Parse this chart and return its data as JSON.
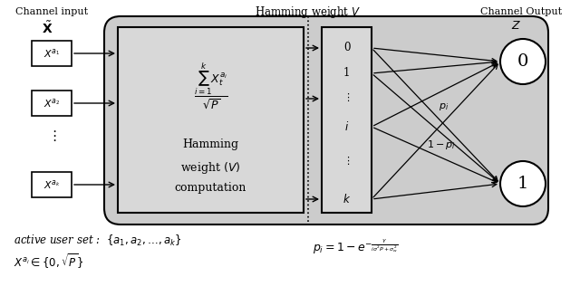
{
  "fig_width": 6.4,
  "fig_height": 3.27,
  "bg_color": "#ffffff",
  "gray_box_color": "#cccccc",
  "inner_box_color": "#e8e8e8",
  "title_channel_input": "Channel input",
  "title_hamming": "Hamming weight $V$",
  "title_channel_output": "Channel Output",
  "label_xtilde": "$\\tilde{\\mathbf{X}}$",
  "label_Z": "$Z$",
  "labels_input": [
    "$X^{a_1}$",
    "$X^{a_2}$",
    "$X^{a_k}$"
  ],
  "label_pi": "$p_i$",
  "label_1mpi": "$1-p_i$",
  "formula_sum": "$\\dfrac{\\sum_{i=1}^{k} X_t^{a_i}}{\\sqrt{P}}$",
  "hamming_text1": "Hamming",
  "hamming_text2": "weight $(V)$",
  "hamming_text3": "computation",
  "output_labels": [
    "0",
    "1"
  ],
  "bottom_text1": "active user set :  $\\{a_1, a_2, \\ldots, a_k\\}$",
  "bottom_text2": "$X^{a_i} \\in \\{0, \\sqrt{P}\\}$",
  "bottom_formula": "$p_i = 1 - e^{-\\frac{\\gamma}{i\\sigma^2 P + \\sigma^2_w}}$"
}
